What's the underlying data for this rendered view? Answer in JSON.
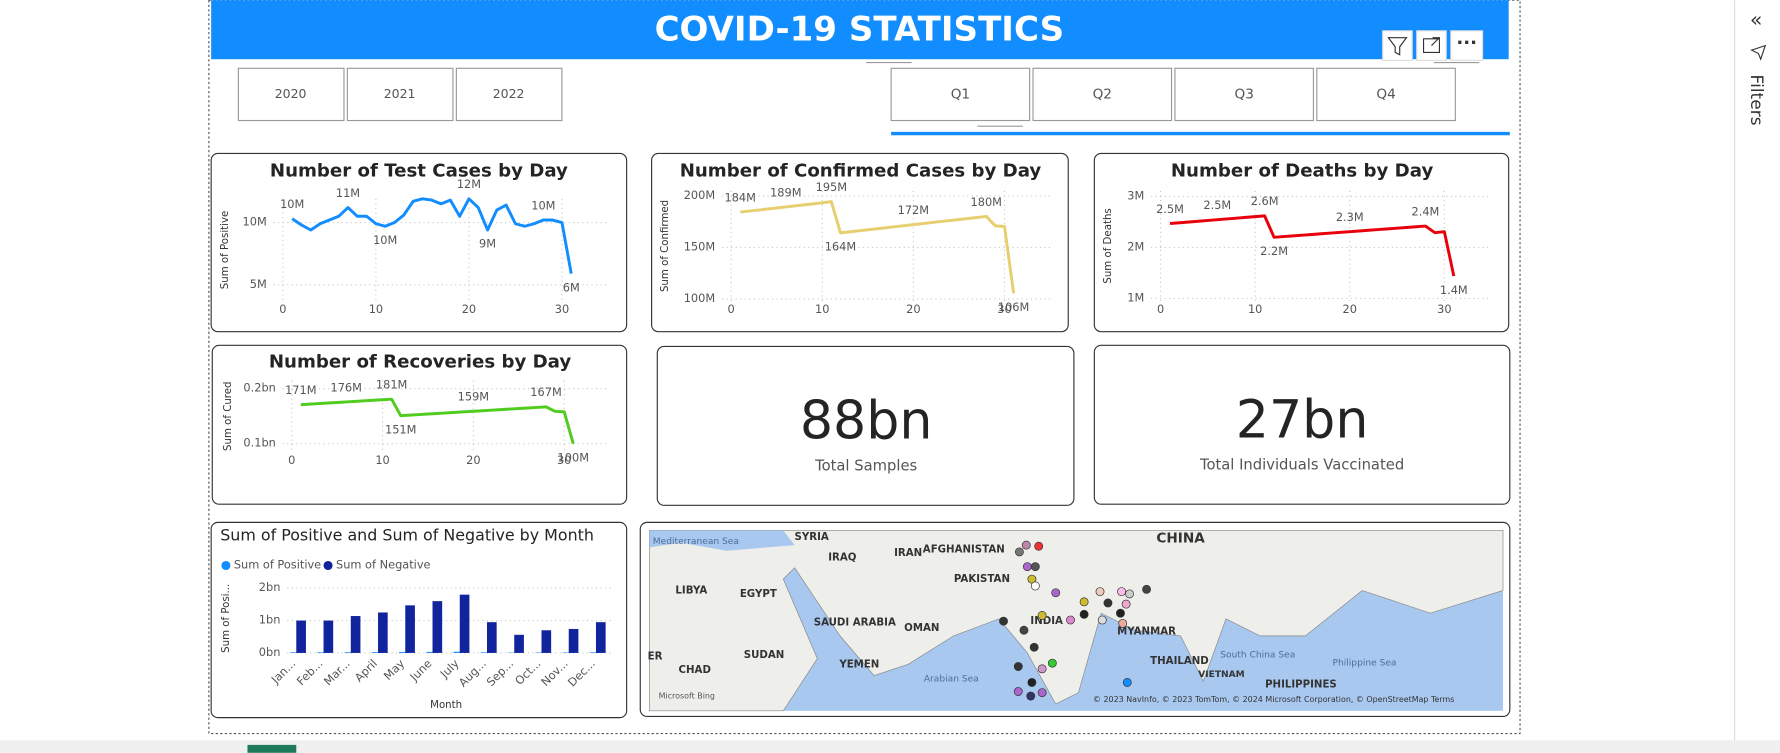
{
  "header": {
    "title": "COVID-19 STATISTICS"
  },
  "year_slicer": {
    "items": [
      "2020",
      "2021",
      "2022"
    ]
  },
  "quarter_slicer": {
    "items": [
      "Q1",
      "Q2",
      "Q3",
      "Q4"
    ]
  },
  "sidebar": {
    "label": "Filters"
  },
  "chart_data": [
    {
      "type": "line",
      "title": "Number of Test Cases by Day",
      "y_label": "Sum of Positive",
      "color": "#118dff",
      "grid": true,
      "x": [
        1,
        2,
        3,
        4,
        5,
        6,
        7,
        8,
        9,
        10,
        11,
        12,
        13,
        14,
        15,
        16,
        17,
        18,
        19,
        20,
        21,
        22,
        23,
        24,
        25,
        26,
        27,
        28,
        29,
        30,
        31
      ],
      "values": [
        10300000,
        9800000,
        9400000,
        9900000,
        10200000,
        10500000,
        11200000,
        10500000,
        10500000,
        9900000,
        9700000,
        10000000,
        10600000,
        11700000,
        11900000,
        11800000,
        11500000,
        11800000,
        10500000,
        11900000,
        11200000,
        9400000,
        11000000,
        11400000,
        9900000,
        9700000,
        9900000,
        10200000,
        10200000,
        10000000,
        5900000
      ],
      "value_labels": [
        "10M",
        null,
        null,
        null,
        null,
        null,
        "11M",
        null,
        null,
        null,
        "10M",
        null,
        null,
        null,
        null,
        null,
        null,
        null,
        null,
        "12M",
        null,
        "9M",
        null,
        null,
        null,
        null,
        null,
        "10M",
        null,
        null,
        "6M"
      ],
      "xlim": [
        -1,
        35
      ],
      "ylim": [
        3700000,
        11900000
      ],
      "xticks": [
        0,
        10,
        20,
        30
      ],
      "yticks": [
        {
          "value": 5000000,
          "label": "5M"
        },
        {
          "value": 10000000,
          "label": "10M"
        }
      ]
    },
    {
      "type": "line",
      "title": "Number of Confirmed Cases by Day",
      "y_label": "Sum of Confirmed",
      "color": "#e6cf6f",
      "grid": true,
      "x": [
        1,
        2,
        3,
        4,
        5,
        6,
        7,
        8,
        9,
        10,
        11,
        12,
        13,
        14,
        15,
        16,
        17,
        18,
        19,
        20,
        21,
        22,
        23,
        24,
        25,
        26,
        27,
        28,
        29,
        30,
        31
      ],
      "values": [
        184400000,
        185400000,
        186400000,
        187400000,
        188400000,
        189400000,
        190400000,
        191400000,
        192400000,
        193400000,
        194600000,
        164200000,
        165200000,
        166200000,
        167200000,
        168200000,
        169200000,
        170200000,
        171200000,
        172200000,
        173200000,
        174200000,
        175200000,
        176200000,
        177200000,
        178200000,
        179200000,
        180200000,
        171000000,
        170500000,
        105600000
      ],
      "value_labels": [
        "184M",
        null,
        null,
        null,
        null,
        "189M",
        null,
        null,
        null,
        null,
        "195M",
        "164M",
        null,
        null,
        null,
        null,
        null,
        null,
        null,
        "172M",
        null,
        null,
        null,
        null,
        null,
        null,
        null,
        "180M",
        null,
        null,
        "106M"
      ],
      "xlim": [
        -1,
        35
      ],
      "ylim": [
        98000000,
        205000000
      ],
      "xticks": [
        0,
        10,
        20,
        30
      ],
      "yticks": [
        {
          "value": 100000000,
          "label": "100M"
        },
        {
          "value": 150000000,
          "label": "150M"
        },
        {
          "value": 200000000,
          "label": "200M"
        }
      ]
    },
    {
      "type": "line",
      "title": "Number of Deaths by Day",
      "y_label": "Sum of Deaths",
      "color": "#e8000b",
      "grid": true,
      "x": [
        1,
        2,
        3,
        4,
        5,
        6,
        7,
        8,
        9,
        10,
        11,
        12,
        13,
        14,
        15,
        16,
        17,
        18,
        19,
        20,
        21,
        22,
        23,
        24,
        25,
        26,
        27,
        28,
        29,
        30,
        31
      ],
      "values": [
        2470000,
        2485000,
        2500000,
        2515000,
        2530000,
        2545000,
        2560000,
        2575000,
        2590000,
        2605000,
        2620000,
        2200000,
        2213750,
        2227500,
        2241250,
        2255000,
        2268750,
        2282500,
        2296250,
        2310000,
        2323750,
        2337500,
        2351250,
        2365000,
        2378750,
        2392500,
        2406250,
        2420000,
        2290000,
        2310000,
        1440000
      ],
      "value_labels": [
        "2.5M",
        null,
        null,
        null,
        null,
        "2.5M",
        null,
        null,
        null,
        null,
        "2.6M",
        "2.2M",
        null,
        null,
        null,
        null,
        null,
        null,
        null,
        "2.3M",
        null,
        null,
        null,
        null,
        null,
        null,
        null,
        "2.4M",
        null,
        null,
        "1.4M"
      ],
      "xlim": [
        -1,
        35
      ],
      "ylim": [
        950000,
        3110000
      ],
      "xticks": [
        0,
        10,
        20,
        30
      ],
      "yticks": [
        {
          "value": 1000000,
          "label": "1M"
        },
        {
          "value": 2000000,
          "label": "2M"
        },
        {
          "value": 3000000,
          "label": "3M"
        }
      ]
    },
    {
      "type": "line",
      "title": "Number of Recoveries by Day",
      "y_label": "Sum of Cured",
      "color": "#4fcc1e",
      "grid": true,
      "x": [
        1,
        2,
        3,
        4,
        5,
        6,
        7,
        8,
        9,
        10,
        11,
        12,
        13,
        14,
        15,
        16,
        17,
        18,
        19,
        20,
        21,
        22,
        23,
        24,
        25,
        26,
        27,
        28,
        29,
        30,
        31
      ],
      "values": [
        171000000,
        172000000,
        173000000,
        174000000,
        175000000,
        176000000,
        177000000,
        178000000,
        179000000,
        180000000,
        181000000,
        151000000,
        152000000,
        153000000,
        154000000,
        155000000,
        156000000,
        157000000,
        158000000,
        159000000,
        160000000,
        161000000,
        162000000,
        163000000,
        164000000,
        165000000,
        166000000,
        167000000,
        159000000,
        158000000,
        100000000
      ],
      "value_labels": [
        "171M",
        null,
        null,
        null,
        null,
        "176M",
        null,
        null,
        null,
        null,
        "181M",
        "151M",
        null,
        null,
        null,
        null,
        null,
        null,
        null,
        "159M",
        null,
        null,
        null,
        null,
        null,
        null,
        null,
        "167M",
        null,
        null,
        "100M"
      ],
      "xlim": [
        -1,
        35
      ],
      "ylim": [
        85000000,
        215000000
      ],
      "xticks": [
        0,
        10,
        20,
        30
      ],
      "yticks": [
        {
          "value": 100000000,
          "label": "0.1bn"
        },
        {
          "value": 200000000,
          "label": "0.2bn"
        }
      ]
    },
    {
      "type": "bar",
      "title": "Sum of Positive and Sum of Negative by Month",
      "x_label": "Month",
      "y_label": "Sum of Posi...",
      "legend": "top-left",
      "categories": [
        "Jan...",
        "Feb...",
        "Mar...",
        "April",
        "May",
        "June",
        "July",
        "Aug...",
        "Sep...",
        "Oct...",
        "Nov...",
        "Dec..."
      ],
      "series": [
        {
          "name": "Sum of Positive",
          "color": "#118dff",
          "values": [
            20000000,
            20000000,
            22000000,
            25000000,
            30000000,
            32000000,
            36000000,
            19000000,
            11000000,
            14000000,
            15000000,
            19000000
          ]
        },
        {
          "name": "Sum of Negative",
          "color": "#12239e",
          "values": [
            1000000000,
            1000000000,
            1140000000,
            1250000000,
            1470000000,
            1600000000,
            1800000000,
            950000000,
            560000000,
            700000000,
            740000000,
            950000000
          ]
        }
      ],
      "ylim": [
        0,
        2140000000
      ],
      "yticks": [
        {
          "value": 0,
          "label": "0bn"
        },
        {
          "value": 1000000000,
          "label": "1bn"
        },
        {
          "value": 2000000000,
          "label": "2bn"
        }
      ]
    }
  ],
  "cards": [
    {
      "value": "88bn",
      "label": "Total Samples"
    },
    {
      "value": "27bn",
      "label": "Total Individuals Vaccinated"
    }
  ],
  "map": {
    "labels": [
      "Mediterranean Sea",
      "SYRIA",
      "IRAQ",
      "IRAN",
      "AFGHANISTAN",
      "CHINA",
      "LIBYA",
      "EGYPT",
      "PAKISTAN",
      "INDIA",
      "SAUDI ARABIA",
      "OMAN",
      "MYANMAR",
      "ER",
      "SUDAN",
      "YEMEN",
      "CHAD",
      "THAILAND",
      "South China Sea",
      "Philippine Sea",
      "VIETNAM",
      "Arabian Sea",
      "PHILIPPINES"
    ],
    "bing": "Microsoft Bing",
    "attribution": "© 2023 NavInfo, © 2023 TomTom, © 2024 Microsoft Corporation, © OpenStreetMap  Terms"
  }
}
